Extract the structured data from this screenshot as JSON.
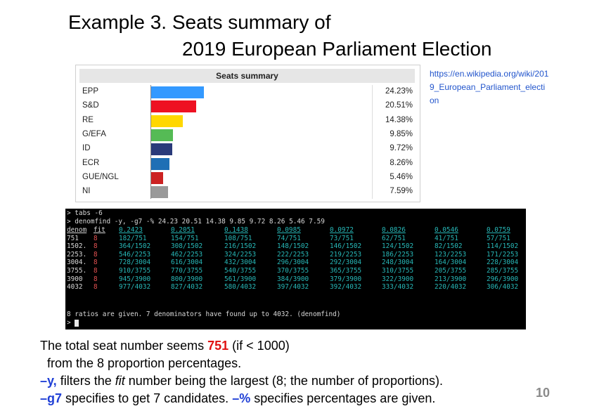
{
  "title_line1": "Example 3. Seats summary of",
  "title_line2": "2019 European Parliament Election",
  "link": "https://en.wikipedia.org/wiki/2019_European_Parliament_election",
  "chart_data": {
    "type": "bar",
    "title": "Seats summary",
    "categories": [
      "EPP",
      "S&D",
      "RE",
      "G/EFA",
      "ID",
      "ECR",
      "GUE/NGL",
      "NI"
    ],
    "values": [
      24.23,
      20.51,
      14.38,
      9.85,
      9.72,
      8.26,
      5.46,
      7.59
    ],
    "value_labels": [
      "24.23%",
      "20.51%",
      "14.38%",
      "9.85%",
      "9.72%",
      "8.26%",
      "5.46%",
      "7.59%"
    ],
    "colors": [
      "#3399ff",
      "#ee1122",
      "#ffd700",
      "#55bb55",
      "#2a3a7a",
      "#1f6fb5",
      "#cc2222",
      "#999999"
    ],
    "ylim": [
      0,
      100
    ]
  },
  "terminal": {
    "cmd1": "> tabs -6",
    "cmd2": "> denomfind -y, -g7 -% 24.23 20.51 14.38 9.85 9.72 8.26 5.46 7.59",
    "header_denom": "denom",
    "header_fit": "fit",
    "ratios": [
      "0.2423",
      "0.2051",
      "0.1438",
      "0.0985",
      "0.0972",
      "0.0826",
      "0.0546",
      "0.0759"
    ],
    "rows": [
      {
        "denom": "751",
        "fit": "8",
        "cells": [
          "182/751",
          "154/751",
          "108/751",
          "74/751",
          "73/751",
          "62/751",
          "41/751",
          "57/751"
        ]
      },
      {
        "denom": "1502.",
        "fit": "8",
        "cells": [
          "364/1502",
          "308/1502",
          "216/1502",
          "148/1502",
          "146/1502",
          "124/1502",
          "82/1502",
          "114/1502"
        ]
      },
      {
        "denom": "2253.",
        "fit": "8",
        "cells": [
          "546/2253",
          "462/2253",
          "324/2253",
          "222/2253",
          "219/2253",
          "186/2253",
          "123/2253",
          "171/2253"
        ]
      },
      {
        "denom": "3004.",
        "fit": "8",
        "cells": [
          "728/3004",
          "616/3004",
          "432/3004",
          "296/3004",
          "292/3004",
          "248/3004",
          "164/3004",
          "228/3004"
        ]
      },
      {
        "denom": "3755.",
        "fit": "8",
        "cells": [
          "910/3755",
          "770/3755",
          "540/3755",
          "370/3755",
          "365/3755",
          "310/3755",
          "205/3755",
          "285/3755"
        ]
      },
      {
        "denom": "3900",
        "fit": "8",
        "cells": [
          "945/3900",
          "800/3900",
          "561/3900",
          "384/3900",
          "379/3900",
          "322/3900",
          "213/3900",
          "296/3900"
        ]
      },
      {
        "denom": "4032",
        "fit": "8",
        "cells": [
          "977/4032",
          "827/4032",
          "580/4032",
          "397/4032",
          "392/4032",
          "333/4032",
          "220/4032",
          "306/4032"
        ]
      }
    ],
    "summary": "8 ratios are given. 7 denominators have found up to 4032. (denomfind)",
    "prompt": ">"
  },
  "body": {
    "p1_pre": "The total seat number seems ",
    "p1_num": "751",
    "p1_post": " (if < 1000)",
    "p2": "from the 8 proportion percentages.",
    "p3_flag": "–y,",
    "p3_a": " filters the ",
    "p3_em": "fit",
    "p3_b": " number being the largest (8; the number of proportions).",
    "p4_flag": "–g7",
    "p4_a": " specifies to get 7 candidates. ",
    "p4_flag2": "–%",
    "p4_b": " specifies percentages are given."
  },
  "page_number": "10"
}
